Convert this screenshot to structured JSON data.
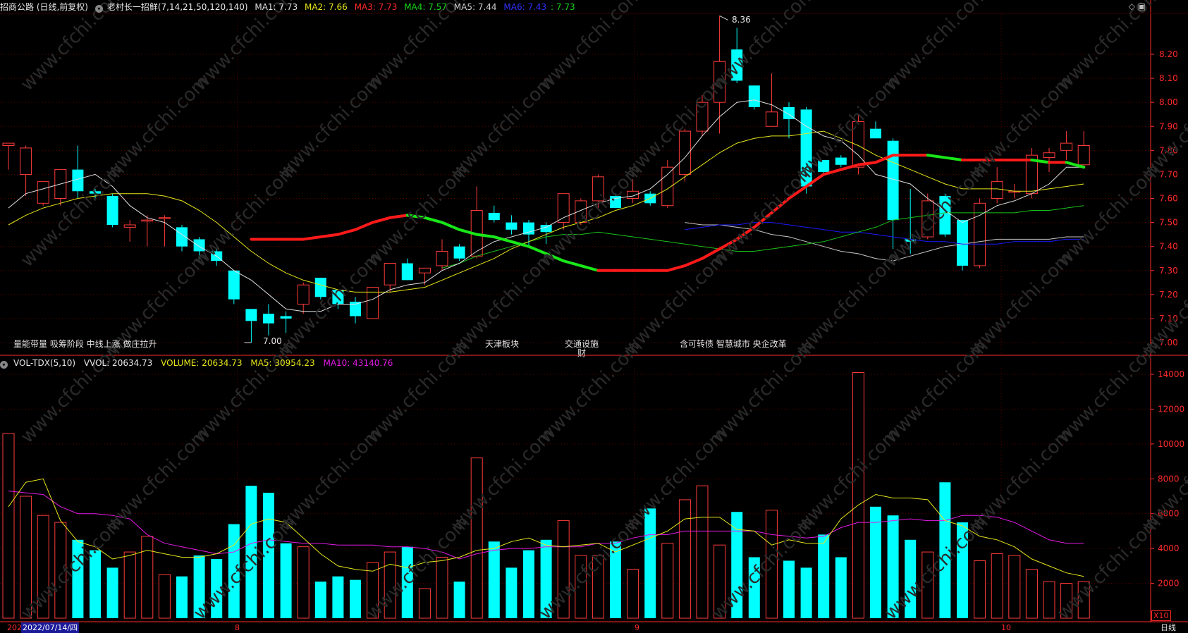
{
  "header": {
    "stock": "招商公路 (日线,前复权)",
    "indicator": "老村长一招鲜(7,14,21,50,120,140)",
    "ma1": "MA1: 7.73",
    "ma2": "MA2: 7.66",
    "ma3": "MA3: 7.73",
    "ma4": "MA4: 7.57",
    "ma5": "MA5: 7.44",
    "ma6": "MA6: 7.43",
    "ma6b": ": 7.73"
  },
  "vol_header": {
    "name": "VOL-TDX(5,10)",
    "vvol": "VVOL: 20634.73",
    "volume": "VOLUME: 20634.73",
    "ma5": "MA5: 30954.23",
    "ma10": "MA10: 43140.76"
  },
  "annotations": {
    "left": "量能带量 吸筹阶段 中线上涨 做庄拉升",
    "tianjin": "天津板块",
    "traffic1": "交通设施",
    "traffic2": "财",
    "mid": "含可转债 智慧城市 央企改革",
    "high": "8.36",
    "low": "7.00"
  },
  "bottom": {
    "start_label": "202",
    "date": "2022/07/14/四",
    "m8": "8",
    "m9": "9",
    "m10": "10",
    "x10": "X10",
    "period": "日线"
  },
  "colors": {
    "up": "#ff3b3b",
    "down": "#00ffff",
    "ma1": "#e0e0e0",
    "ma2": "#e6e61a",
    "ma3_up": "#ff1a1a",
    "ma3_down": "#19e619",
    "ma4": "#19c319",
    "ma5": "#1a1aff",
    "ma6": "#c8c8c8",
    "vma5": "#e6e61a",
    "vma10": "#e619e6",
    "grid": "#5a0000",
    "axis": "#ff2a2a"
  },
  "chart_data": {
    "type": "candlestick",
    "price_axis": {
      "ylim": [
        6.95,
        8.4
      ],
      "ticks": [
        7.0,
        7.1,
        7.2,
        7.3,
        7.4,
        7.5,
        7.6,
        7.7,
        7.8,
        7.9,
        8.0,
        8.1,
        8.2
      ]
    },
    "volume_axis": {
      "ylim": [
        0,
        14500
      ],
      "ticks": [
        2000,
        4000,
        6000,
        8000,
        10000,
        12000,
        14000
      ]
    },
    "candles": [
      [
        7.82,
        7.83,
        7.72,
        7.83
      ],
      [
        7.7,
        7.82,
        7.61,
        7.81
      ],
      [
        7.58,
        7.67,
        7.57,
        7.67
      ],
      [
        7.6,
        7.72,
        7.57,
        7.72
      ],
      [
        7.72,
        7.82,
        7.6,
        7.63
      ],
      [
        7.63,
        7.64,
        7.6,
        7.62
      ],
      [
        7.61,
        7.62,
        7.48,
        7.49
      ],
      [
        7.48,
        7.51,
        7.42,
        7.49
      ],
      [
        7.51,
        7.53,
        7.4,
        7.51
      ],
      [
        7.52,
        7.53,
        7.4,
        7.52
      ],
      [
        7.48,
        7.49,
        7.38,
        7.4
      ],
      [
        7.43,
        7.44,
        7.35,
        7.38
      ],
      [
        7.38,
        7.39,
        7.32,
        7.34
      ],
      [
        7.3,
        7.3,
        7.16,
        7.18
      ],
      [
        7.14,
        7.14,
        7.0,
        7.09
      ],
      [
        7.12,
        7.16,
        7.03,
        7.08
      ],
      [
        7.11,
        7.13,
        7.04,
        7.1
      ],
      [
        7.16,
        7.25,
        7.12,
        7.24
      ],
      [
        7.27,
        7.27,
        7.18,
        7.19
      ],
      [
        7.22,
        7.22,
        7.14,
        7.16
      ],
      [
        7.17,
        7.19,
        7.08,
        7.11
      ],
      [
        7.1,
        7.23,
        7.1,
        7.23
      ],
      [
        7.24,
        7.33,
        7.21,
        7.33
      ],
      [
        7.33,
        7.35,
        7.26,
        7.26
      ],
      [
        7.29,
        7.31,
        7.24,
        7.31
      ],
      [
        7.32,
        7.43,
        7.3,
        7.38
      ],
      [
        7.4,
        7.41,
        7.34,
        7.35
      ],
      [
        7.36,
        7.65,
        7.35,
        7.55
      ],
      [
        7.54,
        7.57,
        7.5,
        7.51
      ],
      [
        7.5,
        7.53,
        7.45,
        7.47
      ],
      [
        7.5,
        7.51,
        7.4,
        7.45
      ],
      [
        7.49,
        7.5,
        7.41,
        7.46
      ],
      [
        7.5,
        7.62,
        7.47,
        7.62
      ],
      [
        7.5,
        7.6,
        7.49,
        7.59
      ],
      [
        7.59,
        7.7,
        7.56,
        7.69
      ],
      [
        7.61,
        7.62,
        7.56,
        7.56
      ],
      [
        7.6,
        7.68,
        7.58,
        7.63
      ],
      [
        7.62,
        7.63,
        7.57,
        7.58
      ],
      [
        7.57,
        7.76,
        7.56,
        7.73
      ],
      [
        7.7,
        7.89,
        7.67,
        7.88
      ],
      [
        7.88,
        8.03,
        7.86,
        8.0
      ],
      [
        8.0,
        8.36,
        7.87,
        8.17
      ],
      [
        8.22,
        8.31,
        8.08,
        8.09
      ],
      [
        8.07,
        8.07,
        7.97,
        7.98
      ],
      [
        7.9,
        8.12,
        7.9,
        7.96
      ],
      [
        7.98,
        8.0,
        7.85,
        7.93
      ],
      [
        7.97,
        7.98,
        7.62,
        7.65
      ],
      [
        7.76,
        7.76,
        7.7,
        7.71
      ],
      [
        7.77,
        7.78,
        7.73,
        7.74
      ],
      [
        7.73,
        7.95,
        7.7,
        7.92
      ],
      [
        7.89,
        7.92,
        7.85,
        7.85
      ],
      [
        7.84,
        7.85,
        7.39,
        7.51
      ],
      [
        7.43,
        7.64,
        7.37,
        7.42
      ],
      [
        7.44,
        7.62,
        7.43,
        7.59
      ],
      [
        7.61,
        7.62,
        7.44,
        7.45
      ],
      [
        7.51,
        7.51,
        7.3,
        7.32
      ],
      [
        7.32,
        7.6,
        7.31,
        7.58
      ],
      [
        7.6,
        7.73,
        7.58,
        7.67
      ],
      [
        7.63,
        7.66,
        7.6,
        7.63
      ],
      [
        7.62,
        7.81,
        7.6,
        7.78
      ],
      [
        7.77,
        7.81,
        7.71,
        7.79
      ],
      [
        7.8,
        7.88,
        7.76,
        7.83
      ],
      [
        7.74,
        7.88,
        7.73,
        7.82
      ]
    ],
    "volume": [
      10600,
      7000,
      5900,
      5500,
      4500,
      3900,
      2900,
      3800,
      4700,
      2500,
      2400,
      3600,
      3400,
      5400,
      7600,
      7200,
      4300,
      4100,
      2100,
      2400,
      2200,
      3200,
      3800,
      4100,
      1700,
      3500,
      2100,
      9200,
      4400,
      2900,
      3900,
      4500,
      5600,
      3600,
      3600,
      4400,
      2800,
      6300,
      4300,
      6800,
      7600,
      4200,
      6100,
      3500,
      6200,
      3300,
      2900,
      4800,
      3500,
      14100,
      6400,
      5900,
      4500,
      3800,
      7800,
      5500,
      3300,
      3700,
      3600,
      2800,
      2100,
      2000,
      2100
    ],
    "ma1": [
      7.56,
      7.62,
      7.64,
      7.66,
      7.68,
      7.7,
      7.65,
      7.57,
      7.52,
      7.5,
      7.45,
      7.4,
      7.36,
      7.3,
      7.26,
      7.2,
      7.14,
      7.13,
      7.13,
      7.16,
      7.16,
      7.18,
      7.22,
      7.24,
      7.25,
      7.3,
      7.33,
      7.38,
      7.42,
      7.44,
      7.46,
      7.48,
      7.52,
      7.55,
      7.58,
      7.6,
      7.61,
      7.64,
      7.7,
      7.77,
      7.86,
      7.94,
      8.0,
      8.01,
      7.99,
      7.95,
      7.9,
      7.86,
      7.84,
      7.78,
      7.7,
      7.68,
      7.66,
      7.6,
      7.55,
      7.5,
      7.53,
      7.57,
      7.59,
      7.62,
      7.66,
      7.73,
      7.73
    ],
    "ma2": [
      7.49,
      7.53,
      7.56,
      7.58,
      7.6,
      7.61,
      7.62,
      7.62,
      7.62,
      7.61,
      7.59,
      7.55,
      7.5,
      7.44,
      7.38,
      7.33,
      7.29,
      7.26,
      7.24,
      7.22,
      7.21,
      7.21,
      7.21,
      7.22,
      7.23,
      7.26,
      7.29,
      7.32,
      7.35,
      7.39,
      7.42,
      7.45,
      7.48,
      7.5,
      7.52,
      7.55,
      7.57,
      7.6,
      7.64,
      7.69,
      7.74,
      7.79,
      7.83,
      7.85,
      7.86,
      7.86,
      7.87,
      7.88,
      7.85,
      7.82,
      7.78,
      7.75,
      7.72,
      7.69,
      7.66,
      7.64,
      7.64,
      7.64,
      7.63,
      7.63,
      7.64,
      7.65,
      7.66
    ],
    "ma3": [
      7.43,
      7.43,
      7.43,
      7.43,
      7.44,
      7.45,
      7.47,
      7.5,
      7.52,
      7.53,
      7.52,
      7.5,
      7.47,
      7.45,
      7.44,
      7.42,
      7.4,
      7.37,
      7.34,
      7.32,
      7.3,
      7.3,
      7.3,
      7.3,
      7.3,
      7.32,
      7.35,
      7.39,
      7.43,
      7.48,
      7.54,
      7.6,
      7.65,
      7.7,
      7.72,
      7.74,
      7.75,
      7.78,
      7.78,
      7.78,
      7.77,
      7.76,
      7.76,
      7.76,
      7.76,
      7.76,
      7.75,
      7.75,
      7.73
    ],
    "ma4": [
      7.31,
      7.33,
      7.36,
      7.38,
      7.4,
      7.42,
      7.44,
      7.45,
      7.45,
      7.46,
      7.45,
      7.44,
      7.43,
      7.42,
      7.41,
      7.4,
      7.39,
      7.38,
      7.38,
      7.39,
      7.4,
      7.41,
      7.42,
      7.44,
      7.46,
      7.48,
      7.51,
      7.52,
      7.53,
      7.54,
      7.54,
      7.54,
      7.54,
      7.54,
      7.55,
      7.55,
      7.56,
      7.57
    ],
    "ma5": [
      7.47,
      7.48,
      7.49,
      7.49,
      7.5,
      7.5,
      7.49,
      7.48,
      7.47,
      7.46,
      7.46,
      7.45,
      7.44,
      7.43,
      7.42,
      7.42,
      7.41,
      7.41,
      7.41,
      7.42,
      7.42,
      7.42,
      7.43,
      7.43
    ],
    "ma6": [
      7.5,
      7.49,
      7.49,
      7.48,
      7.47,
      7.45,
      7.44,
      7.42,
      7.4,
      7.38,
      7.37,
      7.35,
      7.34,
      7.36,
      7.38,
      7.4,
      7.41,
      7.42,
      7.43,
      7.43,
      7.43,
      7.43,
      7.44,
      7.44
    ],
    "vma5": [
      6400,
      7800,
      8000,
      5600,
      4400,
      4100,
      3400,
      3600,
      3900,
      3700,
      3500,
      3500,
      3700,
      4200,
      5400,
      5700,
      5500,
      4600,
      3700,
      3000,
      2800,
      2700,
      3100,
      2900,
      3200,
      3300,
      3500,
      3900,
      4000,
      4400,
      4600,
      4200,
      4100,
      4200,
      4300,
      3800,
      4200,
      4600,
      5000,
      5700,
      5800,
      5800,
      5100,
      5000,
      4200,
      4500,
      4300,
      4300,
      5700,
      6500,
      7100,
      6900,
      6900,
      6800,
      5600,
      5300,
      4700,
      4500,
      4100,
      3400,
      3000,
      2600,
      2400
    ],
    "vma10": [
      7300,
      7200,
      7100,
      6400,
      6000,
      6000,
      5900,
      5700,
      4800,
      4300,
      4100,
      3900,
      3700,
      3800,
      4300,
      4500,
      4400,
      4300,
      4300,
      4200,
      4200,
      4200,
      4100,
      4100,
      4000,
      3800,
      3400,
      3700,
      3900,
      4000,
      4000,
      4100,
      4100,
      4100,
      4300,
      4300,
      4600,
      4800,
      4800,
      5000,
      5000,
      5000,
      5000,
      5000,
      4800,
      4700,
      4600,
      4700,
      5200,
      5500,
      5500,
      5600,
      5700,
      5600,
      5600,
      5900,
      5900,
      5800,
      5500,
      5000,
      4500,
      4300,
      4300
    ]
  }
}
